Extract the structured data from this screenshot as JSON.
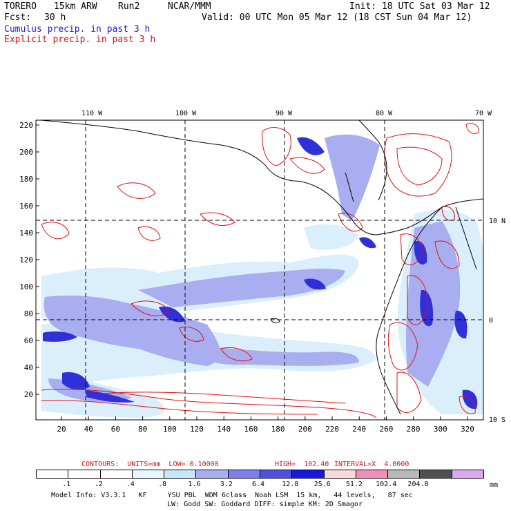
{
  "header": {
    "model": "TORERO",
    "grid": "15km ARW",
    "run": "Run2",
    "org": "NCAR/MMM",
    "init": "Init: 18 UTC Sat 03 Mar 12",
    "fcst_label": "Fcst:",
    "fcst_value": "30 h",
    "valid": "Valid: 00 UTC Mon 05 Mar 12 (18 CST Sun 04 Mar 12)",
    "field1": "Cumulus precip. in past 3 h",
    "field2": "Explicit precip. in past 3 h"
  },
  "map": {
    "lon_labels": [
      "110 W",
      "100 W",
      "90 W",
      "80 W",
      "70 W"
    ],
    "lat_labels": [
      "10 N",
      "0",
      "10 S"
    ],
    "y_ticks": [
      "220",
      "200",
      "180",
      "160",
      "140",
      "120",
      "100",
      "80",
      "60",
      "40",
      "20"
    ],
    "x_ticks": [
      "20",
      "40",
      "60",
      "80",
      "100",
      "120",
      "140",
      "160",
      "180",
      "200",
      "220",
      "240",
      "260",
      "280",
      "300",
      "320"
    ]
  },
  "contour_info": {
    "units": "CONTOURS:  UNITS=mm  LOW= 0.10000",
    "high": "HIGH=  102.40",
    "interval": "INTERVAL=X  4.0000"
  },
  "colorbar": {
    "labels": [
      ".1",
      ".2",
      ".4",
      ".8",
      "1.6",
      "3.2",
      "6.4",
      "12.8",
      "25.6",
      "51.2",
      "102.4",
      "204.8"
    ],
    "unit": "mm",
    "colors": [
      "#ffffff",
      "#ffffff",
      "#ffffff",
      "#e8f6ff",
      "#c6e6fb",
      "#a9aef0",
      "#7c80ea",
      "#5050e0",
      "#1818d8",
      "#f8d8d8",
      "#f090b8",
      "#b8b8b8",
      "#505050",
      "#d8a8f0"
    ]
  },
  "footer": {
    "line1": "Model Info: V3.3.1   KF     YSU PBL  WDM 6class  Noah LSM  15 km,   44 levels,   87 sec",
    "line2": "LW: Godd SW: Goddard DIFF: simple KM: 2D Smagor"
  }
}
